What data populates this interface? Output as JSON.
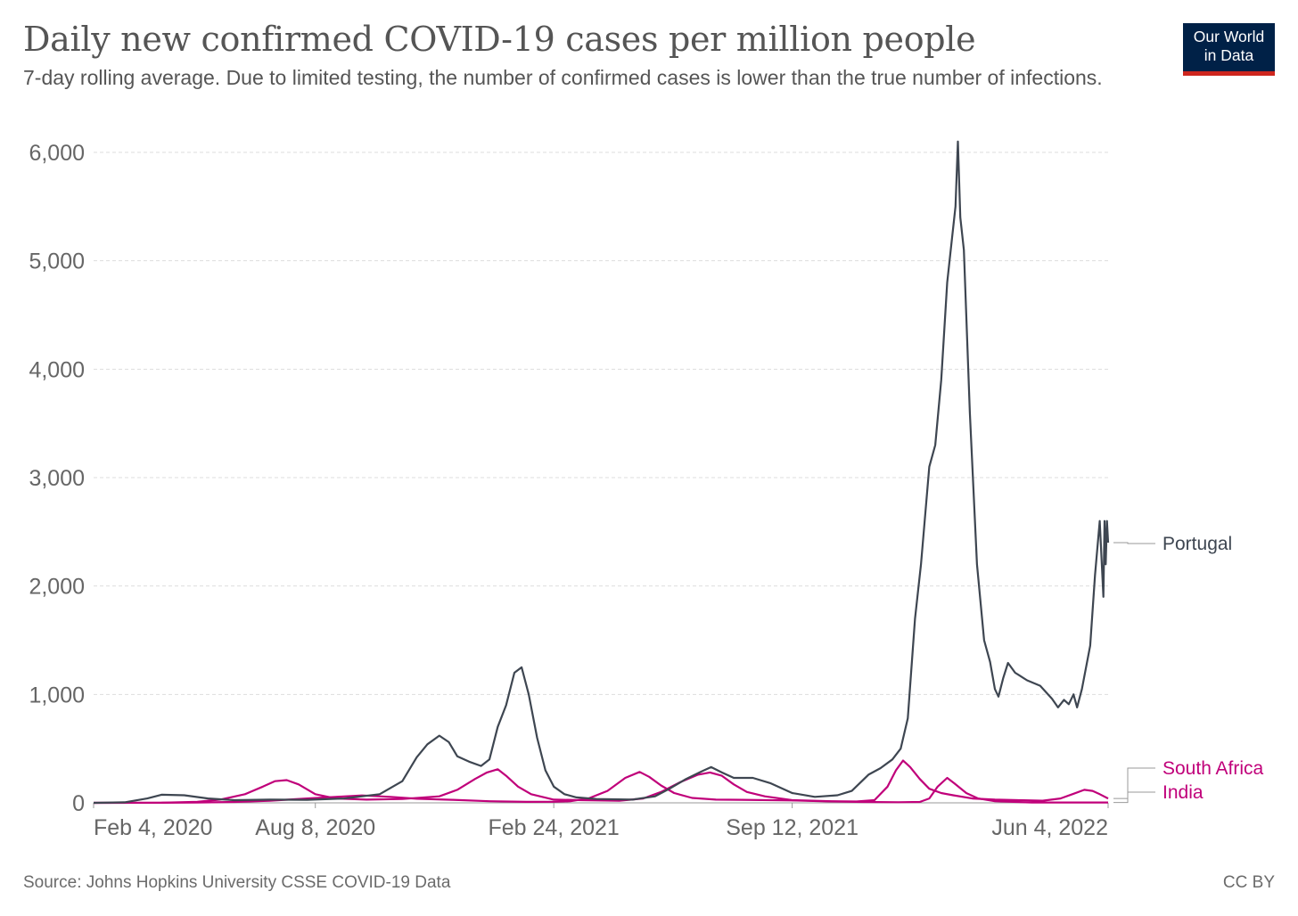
{
  "header": {
    "title": "Daily new confirmed COVID-19 cases per million people",
    "subtitle": "7-day rolling average. Due to limited testing, the number of confirmed cases is lower than the true number of infections."
  },
  "logo": {
    "line1": "Our World",
    "line2": "in Data"
  },
  "footer": {
    "source": "Source: Johns Hopkins University CSSE COVID-19 Data",
    "license": "CC BY"
  },
  "chart_data": {
    "type": "line",
    "title": "Daily new confirmed COVID-19 cases per million people",
    "subtitle": "7-day rolling average. Due to limited testing, the number of confirmed cases is lower than the true number of infections.",
    "xlabel": "",
    "ylabel": "",
    "x_range": [
      "2020-02-04",
      "2022-06-04"
    ],
    "ylim": [
      0,
      6000
    ],
    "yticks": [
      0,
      1000,
      2000,
      3000,
      4000,
      5000,
      6000
    ],
    "ytick_labels": [
      "0",
      "1,000",
      "2,000",
      "3,000",
      "4,000",
      "5,000",
      "6,000"
    ],
    "xticks": [
      "2020-02-04",
      "2020-08-08",
      "2021-02-24",
      "2021-09-12",
      "2022-06-04"
    ],
    "xtick_labels": [
      "Feb 4, 2020",
      "Aug 8, 2020",
      "Feb 24, 2021",
      "Sep 12, 2021",
      "Jun 4, 2022"
    ],
    "grid": "horizontal-dashed",
    "legend": "inline-right",
    "series": [
      {
        "name": "Portugal",
        "color": "#3e4651",
        "points": [
          [
            "2020-02-04",
            0
          ],
          [
            "2020-03-01",
            5
          ],
          [
            "2020-03-20",
            40
          ],
          [
            "2020-04-01",
            75
          ],
          [
            "2020-04-20",
            70
          ],
          [
            "2020-05-10",
            40
          ],
          [
            "2020-06-01",
            25
          ],
          [
            "2020-07-01",
            30
          ],
          [
            "2020-08-01",
            28
          ],
          [
            "2020-09-01",
            40
          ],
          [
            "2020-10-01",
            80
          ],
          [
            "2020-10-20",
            200
          ],
          [
            "2020-11-01",
            420
          ],
          [
            "2020-11-10",
            540
          ],
          [
            "2020-11-20",
            620
          ],
          [
            "2020-11-28",
            560
          ],
          [
            "2020-12-05",
            430
          ],
          [
            "2020-12-15",
            380
          ],
          [
            "2020-12-25",
            340
          ],
          [
            "2021-01-01",
            400
          ],
          [
            "2021-01-08",
            700
          ],
          [
            "2021-01-15",
            900
          ],
          [
            "2021-01-22",
            1200
          ],
          [
            "2021-01-28",
            1250
          ],
          [
            "2021-02-03",
            1000
          ],
          [
            "2021-02-10",
            600
          ],
          [
            "2021-02-17",
            300
          ],
          [
            "2021-02-24",
            150
          ],
          [
            "2021-03-05",
            80
          ],
          [
            "2021-03-15",
            50
          ],
          [
            "2021-04-01",
            35
          ],
          [
            "2021-05-01",
            30
          ],
          [
            "2021-05-20",
            60
          ],
          [
            "2021-06-01",
            130
          ],
          [
            "2021-06-15",
            220
          ],
          [
            "2021-06-28",
            290
          ],
          [
            "2021-07-06",
            330
          ],
          [
            "2021-07-15",
            280
          ],
          [
            "2021-07-25",
            230
          ],
          [
            "2021-08-10",
            230
          ],
          [
            "2021-08-25",
            180
          ],
          [
            "2021-09-12",
            90
          ],
          [
            "2021-10-01",
            55
          ],
          [
            "2021-10-20",
            70
          ],
          [
            "2021-11-01",
            110
          ],
          [
            "2021-11-15",
            260
          ],
          [
            "2021-11-25",
            320
          ],
          [
            "2021-12-05",
            400
          ],
          [
            "2021-12-12",
            500
          ],
          [
            "2021-12-18",
            780
          ],
          [
            "2021-12-24",
            1700
          ],
          [
            "2021-12-29",
            2200
          ],
          [
            "2022-01-05",
            3100
          ],
          [
            "2022-01-10",
            3300
          ],
          [
            "2022-01-15",
            3900
          ],
          [
            "2022-01-20",
            4800
          ],
          [
            "2022-01-24",
            5200
          ],
          [
            "2022-01-27",
            5500
          ],
          [
            "2022-01-29",
            6100
          ],
          [
            "2022-01-31",
            5400
          ],
          [
            "2022-02-03",
            5100
          ],
          [
            "2022-02-08",
            3600
          ],
          [
            "2022-02-14",
            2200
          ],
          [
            "2022-02-20",
            1500
          ],
          [
            "2022-02-25",
            1300
          ],
          [
            "2022-03-01",
            1050
          ],
          [
            "2022-03-04",
            980
          ],
          [
            "2022-03-08",
            1150
          ],
          [
            "2022-03-12",
            1290
          ],
          [
            "2022-03-18",
            1200
          ],
          [
            "2022-03-28",
            1130
          ],
          [
            "2022-04-08",
            1080
          ],
          [
            "2022-04-18",
            960
          ],
          [
            "2022-04-23",
            880
          ],
          [
            "2022-04-28",
            950
          ],
          [
            "2022-05-02",
            910
          ],
          [
            "2022-05-06",
            1000
          ],
          [
            "2022-05-09",
            880
          ],
          [
            "2022-05-13",
            1050
          ],
          [
            "2022-05-20",
            1450
          ],
          [
            "2022-05-24",
            2100
          ],
          [
            "2022-05-28",
            2600
          ],
          [
            "2022-05-31",
            1900
          ],
          [
            "2022-06-01",
            2600
          ],
          [
            "2022-06-02",
            2200
          ],
          [
            "2022-06-03",
            2600
          ],
          [
            "2022-06-04",
            2400
          ]
        ]
      },
      {
        "name": "South Africa",
        "color": "#c0007a",
        "points": [
          [
            "2020-02-04",
            0
          ],
          [
            "2020-04-01",
            2
          ],
          [
            "2020-05-01",
            10
          ],
          [
            "2020-05-20",
            30
          ],
          [
            "2020-06-10",
            80
          ],
          [
            "2020-06-25",
            150
          ],
          [
            "2020-07-05",
            200
          ],
          [
            "2020-07-15",
            210
          ],
          [
            "2020-07-25",
            170
          ],
          [
            "2020-08-08",
            80
          ],
          [
            "2020-08-25",
            40
          ],
          [
            "2020-09-20",
            30
          ],
          [
            "2020-10-20",
            35
          ],
          [
            "2020-11-20",
            60
          ],
          [
            "2020-12-05",
            120
          ],
          [
            "2020-12-20",
            220
          ],
          [
            "2020-12-30",
            280
          ],
          [
            "2021-01-08",
            310
          ],
          [
            "2021-01-15",
            250
          ],
          [
            "2021-01-25",
            150
          ],
          [
            "2021-02-05",
            80
          ],
          [
            "2021-02-24",
            30
          ],
          [
            "2021-03-20",
            25
          ],
          [
            "2021-04-20",
            20
          ],
          [
            "2021-05-10",
            40
          ],
          [
            "2021-05-25",
            100
          ],
          [
            "2021-06-10",
            190
          ],
          [
            "2021-06-25",
            260
          ],
          [
            "2021-07-05",
            280
          ],
          [
            "2021-07-15",
            250
          ],
          [
            "2021-07-25",
            170
          ],
          [
            "2021-08-05",
            100
          ],
          [
            "2021-08-20",
            60
          ],
          [
            "2021-09-12",
            25
          ],
          [
            "2021-10-15",
            15
          ],
          [
            "2021-11-05",
            12
          ],
          [
            "2021-11-20",
            25
          ],
          [
            "2021-12-01",
            150
          ],
          [
            "2021-12-08",
            300
          ],
          [
            "2021-12-14",
            390
          ],
          [
            "2021-12-20",
            330
          ],
          [
            "2021-12-28",
            220
          ],
          [
            "2022-01-05",
            130
          ],
          [
            "2022-01-15",
            90
          ],
          [
            "2022-01-25",
            70
          ],
          [
            "2022-02-10",
            40
          ],
          [
            "2022-03-01",
            30
          ],
          [
            "2022-03-20",
            25
          ],
          [
            "2022-04-10",
            20
          ],
          [
            "2022-04-25",
            40
          ],
          [
            "2022-05-05",
            80
          ],
          [
            "2022-05-15",
            120
          ],
          [
            "2022-05-22",
            110
          ],
          [
            "2022-05-28",
            80
          ],
          [
            "2022-06-04",
            40
          ]
        ]
      },
      {
        "name": "India",
        "color": "#c0007a",
        "points": [
          [
            "2020-02-04",
            0
          ],
          [
            "2020-04-01",
            1
          ],
          [
            "2020-05-01",
            3
          ],
          [
            "2020-06-01",
            8
          ],
          [
            "2020-07-01",
            20
          ],
          [
            "2020-08-01",
            40
          ],
          [
            "2020-08-25",
            55
          ],
          [
            "2020-09-16",
            68
          ],
          [
            "2020-10-10",
            55
          ],
          [
            "2020-11-01",
            38
          ],
          [
            "2020-12-01",
            28
          ],
          [
            "2021-01-01",
            15
          ],
          [
            "2021-02-01",
            9
          ],
          [
            "2021-02-24",
            10
          ],
          [
            "2021-03-10",
            15
          ],
          [
            "2021-03-25",
            40
          ],
          [
            "2021-04-10",
            110
          ],
          [
            "2021-04-25",
            230
          ],
          [
            "2021-05-07",
            285
          ],
          [
            "2021-05-15",
            240
          ],
          [
            "2021-05-25",
            160
          ],
          [
            "2021-06-05",
            90
          ],
          [
            "2021-06-20",
            45
          ],
          [
            "2021-07-10",
            30
          ],
          [
            "2021-08-01",
            28
          ],
          [
            "2021-09-12",
            22
          ],
          [
            "2021-10-10",
            14
          ],
          [
            "2021-11-10",
            8
          ],
          [
            "2021-12-10",
            6
          ],
          [
            "2021-12-28",
            8
          ],
          [
            "2022-01-05",
            40
          ],
          [
            "2022-01-12",
            150
          ],
          [
            "2022-01-20",
            230
          ],
          [
            "2022-01-26",
            180
          ],
          [
            "2022-02-05",
            90
          ],
          [
            "2022-02-15",
            40
          ],
          [
            "2022-03-01",
            15
          ],
          [
            "2022-04-01",
            3
          ],
          [
            "2022-05-01",
            3
          ],
          [
            "2022-06-04",
            3
          ]
        ]
      }
    ]
  }
}
